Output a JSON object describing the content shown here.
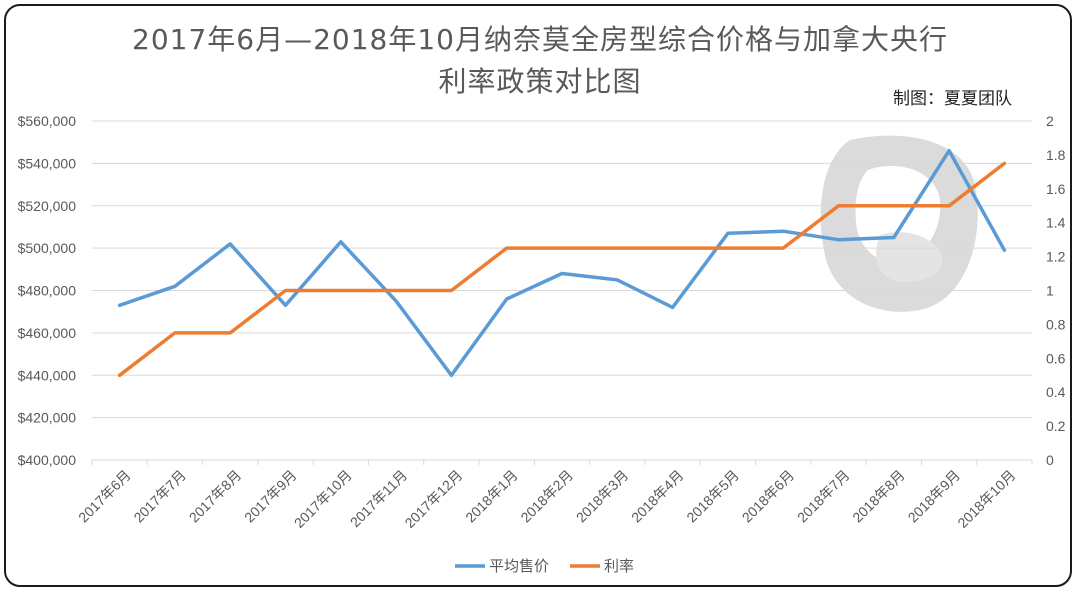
{
  "chart_data": {
    "type": "line",
    "title": "2017年6月—2018年10月纳奈莫全房型综合价格与加拿大央行",
    "subtitle": "利率政策对比图",
    "credit": "制图：夏夏团队",
    "categories": [
      "2017年6月",
      "2017年7月",
      "2017年8月",
      "2017年9月",
      "2017年10月",
      "2017年11月",
      "2017年12月",
      "2018年1月",
      "2018年2月",
      "2018年3月",
      "2018年4月",
      "2018年5月",
      "2018年6月",
      "2018年7月",
      "2018年8月",
      "2018年9月",
      "2018年10月"
    ],
    "y_left": {
      "min": 400000,
      "max": 560000,
      "step": 20000,
      "ticks": [
        "$400,000",
        "$420,000",
        "$440,000",
        "$460,000",
        "$480,000",
        "$500,000",
        "$520,000",
        "$540,000",
        "$560,000"
      ]
    },
    "y_right": {
      "min": 0,
      "max": 2,
      "step": 0.2,
      "ticks": [
        "0",
        "0.2",
        "0.4",
        "0.6",
        "0.8",
        "1",
        "1.2",
        "1.4",
        "1.6",
        "1.8",
        "2"
      ]
    },
    "series": [
      {
        "name": "平均售价",
        "axis": "left",
        "color": "#5b9bd5",
        "values": [
          473000,
          482000,
          502000,
          473000,
          503000,
          475000,
          440000,
          476000,
          488000,
          485000,
          472000,
          507000,
          508000,
          504000,
          505000,
          546000,
          499000
        ]
      },
      {
        "name": "利率",
        "axis": "right",
        "color": "#ed7d31",
        "values": [
          0.5,
          0.75,
          0.75,
          1.0,
          1.0,
          1.0,
          1.0,
          1.25,
          1.25,
          1.25,
          1.25,
          1.25,
          1.25,
          1.5,
          1.5,
          1.5,
          1.75
        ]
      }
    ],
    "grid": true,
    "legend_position": "bottom"
  }
}
